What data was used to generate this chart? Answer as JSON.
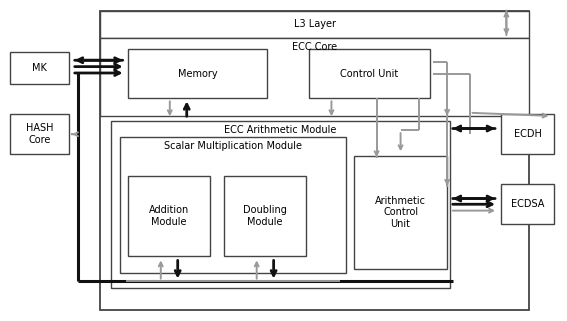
{
  "bg_color": "#ffffff",
  "box_edge_color": "#444444",
  "gray_color": "#999999",
  "dark_color": "#111111",
  "font_size": 7.0,
  "boxes": {
    "outer_main": [
      0.175,
      0.03,
      0.76,
      0.94
    ],
    "l3_layer": [
      0.175,
      0.885,
      0.76,
      0.085
    ],
    "ecc_core": [
      0.175,
      0.64,
      0.76,
      0.245
    ],
    "memory": [
      0.225,
      0.695,
      0.245,
      0.155
    ],
    "control_unit": [
      0.545,
      0.695,
      0.215,
      0.155
    ],
    "ecc_arith": [
      0.195,
      0.1,
      0.6,
      0.525
    ],
    "scalar_mult": [
      0.21,
      0.145,
      0.4,
      0.43
    ],
    "addition": [
      0.225,
      0.2,
      0.145,
      0.25
    ],
    "doubling": [
      0.395,
      0.2,
      0.145,
      0.25
    ],
    "arith_ctrl": [
      0.625,
      0.16,
      0.165,
      0.355
    ],
    "mk": [
      0.015,
      0.74,
      0.105,
      0.1
    ],
    "hash_core": [
      0.015,
      0.52,
      0.105,
      0.125
    ],
    "ecdh": [
      0.885,
      0.52,
      0.095,
      0.125
    ],
    "ecdsa": [
      0.885,
      0.3,
      0.095,
      0.125
    ]
  },
  "labels": {
    "l3_layer": "L3 Layer",
    "ecc_core": "ECC Core",
    "memory": "Memory",
    "control_unit": "Control Unit",
    "ecc_arith": "ECC Arithmetic Module",
    "scalar_mult": "Scalar Multiplication Module",
    "addition": "Addition\nModule",
    "doubling": "Doubling\nModule",
    "arith_ctrl": "Arithmetic\nControl\nUnit",
    "mk": "MK",
    "hash_core": "HASH\nCore",
    "ecdh": "ECDH",
    "ecdsa": "ECDSA"
  }
}
